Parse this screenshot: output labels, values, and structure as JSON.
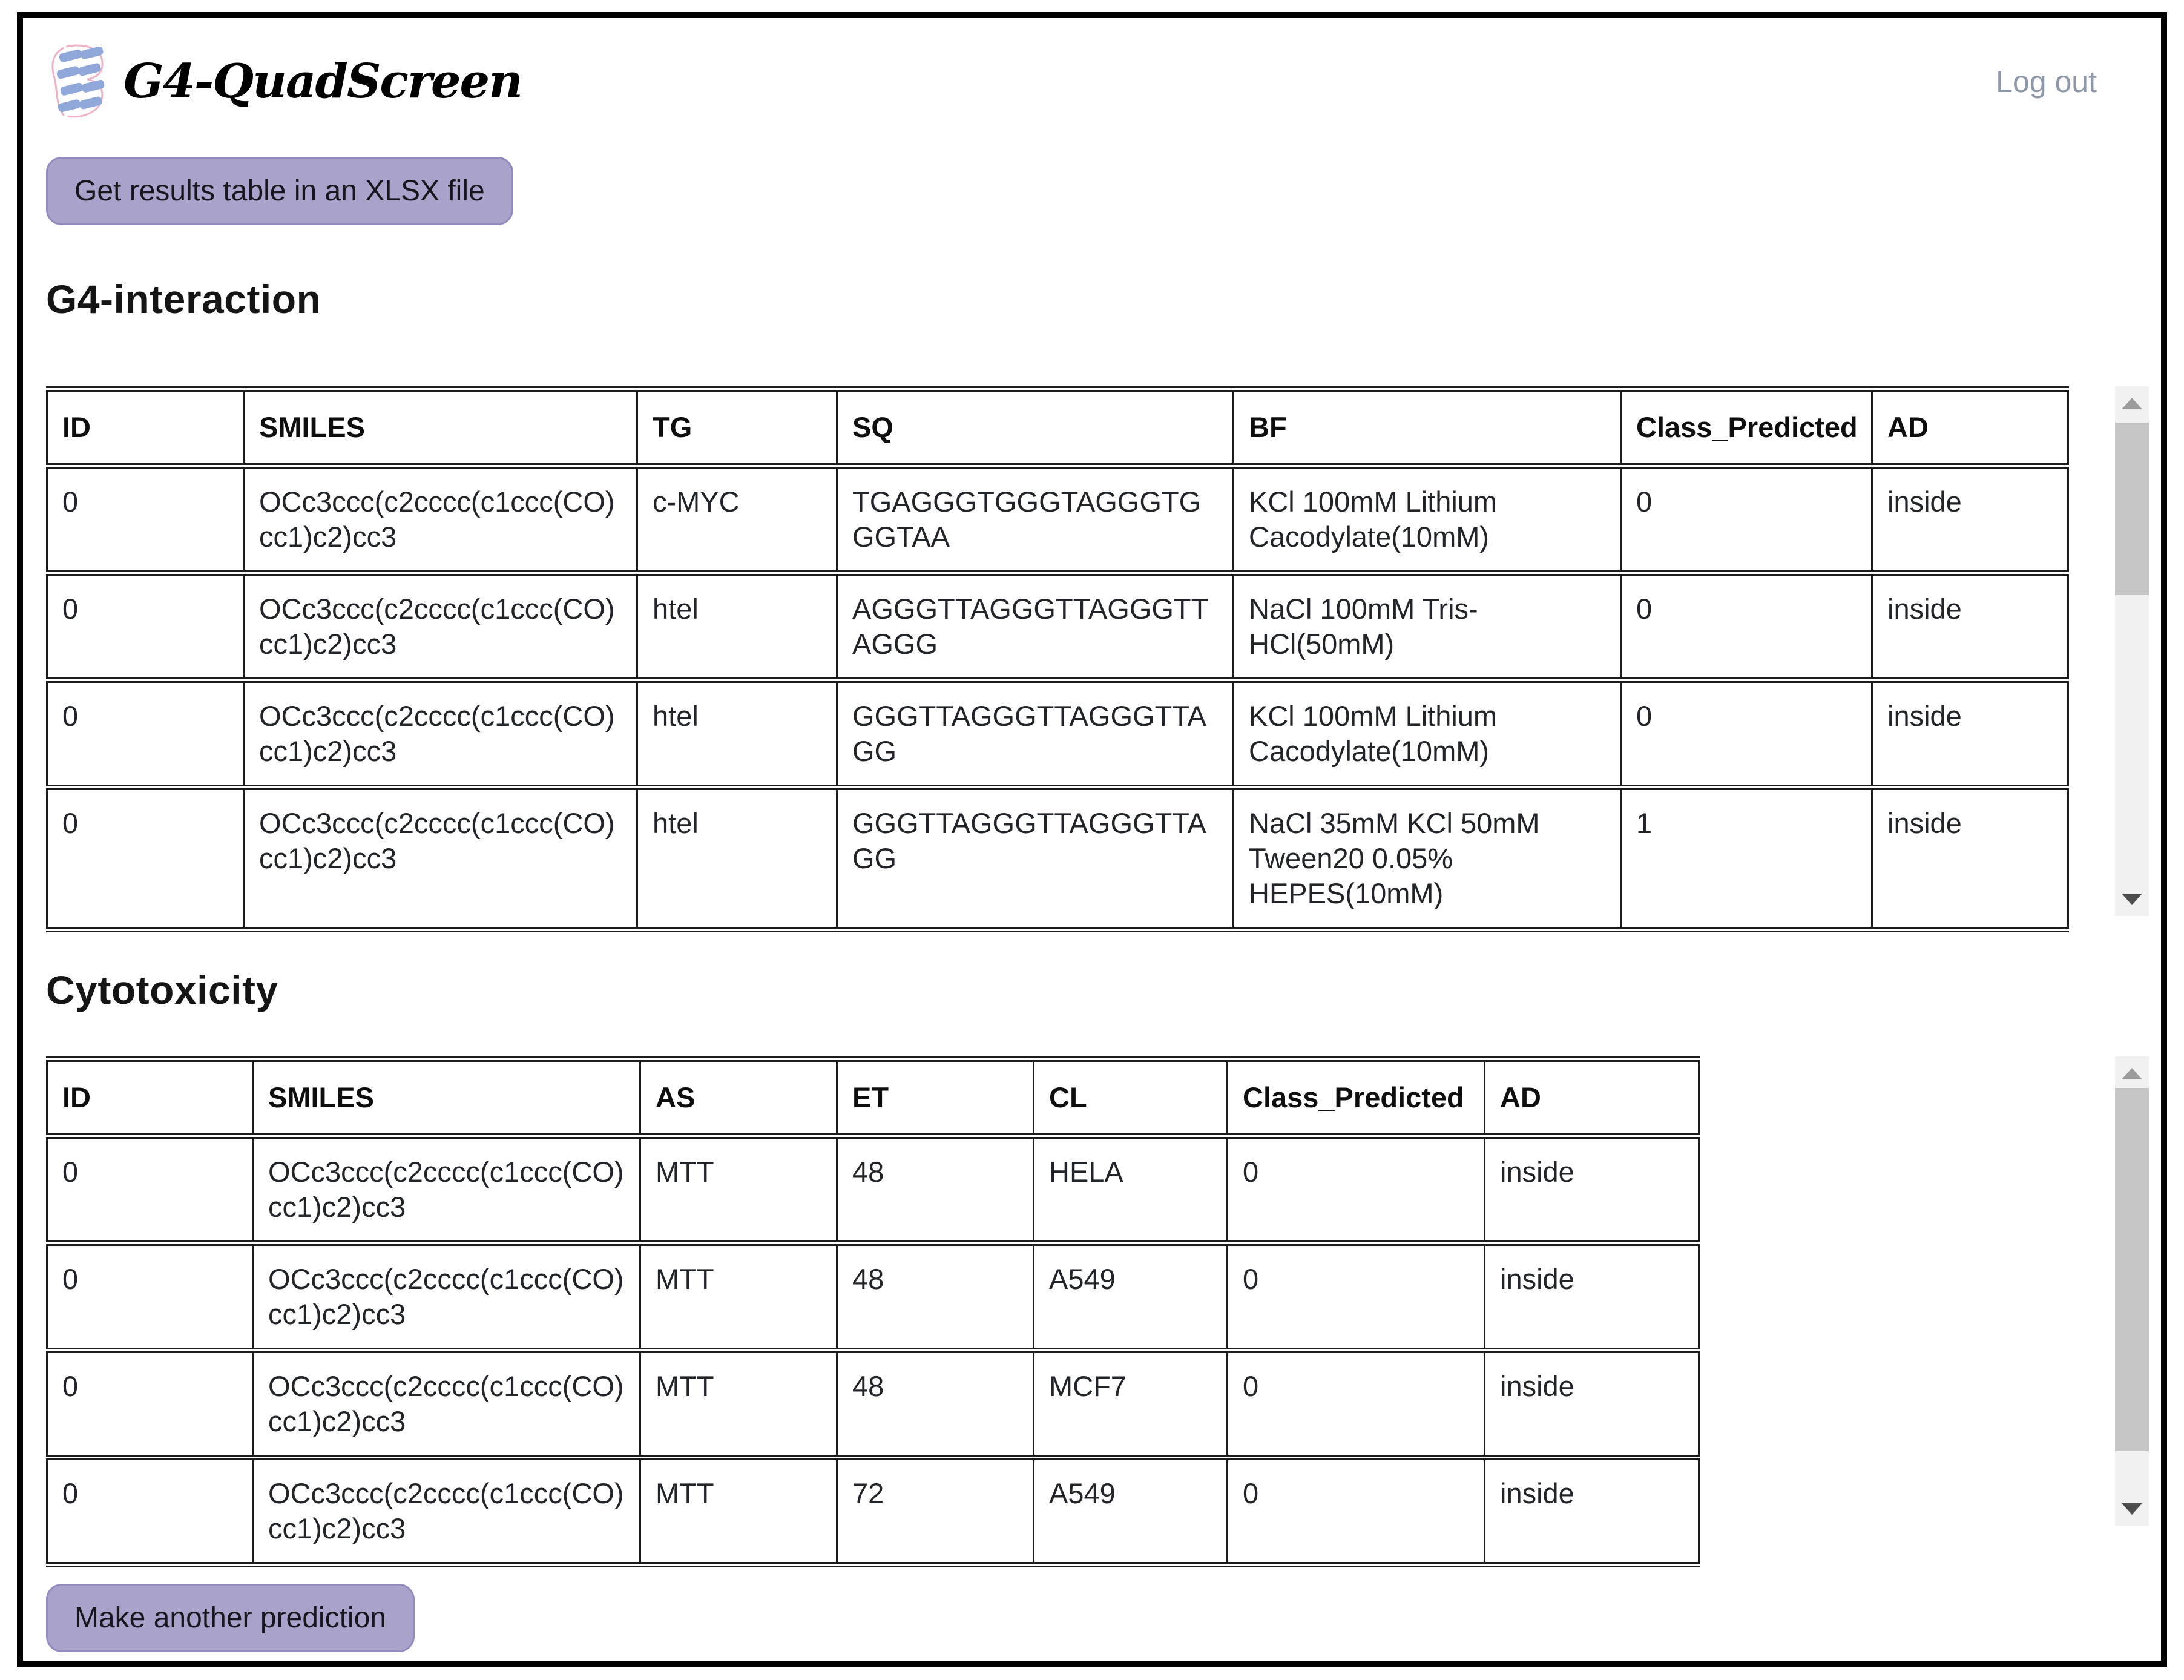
{
  "header": {
    "logo_text": "G4-QuadScreen",
    "logout_label": "Log out"
  },
  "toolbar": {
    "xlsx_button_label": "Get results table in an XLSX file"
  },
  "g4_section": {
    "title": "G4-interaction",
    "columns": [
      "ID",
      "SMILES",
      "TG",
      "SQ",
      "BF",
      "Class_Predicted",
      "AD"
    ],
    "rows": [
      [
        "0",
        "OCc3ccc(c2cccc(c1ccc(CO)cc1)c2)cc3",
        "c-MYC",
        "TGAGGGTGGGTAGGGTGGGTAA",
        "KCl 100mM Lithium Cacodylate(10mM)",
        "0",
        "inside"
      ],
      [
        "0",
        "OCc3ccc(c2cccc(c1ccc(CO)cc1)c2)cc3",
        "htel",
        "AGGGTTAGGGTTAGGGTTAGGG",
        "NaCl 100mM Tris-HCl(50mM)",
        "0",
        "inside"
      ],
      [
        "0",
        "OCc3ccc(c2cccc(c1ccc(CO)cc1)c2)cc3",
        "htel",
        "GGGTTAGGGTTAGGGTTAGG",
        "KCl 100mM Lithium Cacodylate(10mM)",
        "0",
        "inside"
      ],
      [
        "0",
        "OCc3ccc(c2cccc(c1ccc(CO)cc1)c2)cc3",
        "htel",
        "GGGTTAGGGTTAGGGTTAGG",
        "NaCl 35mM KCl 50mM Tween20 0.05% HEPES(10mM)",
        "1",
        "inside"
      ]
    ]
  },
  "cytotoxicity_section": {
    "title": "Cytotoxicity",
    "columns": [
      "ID",
      "SMILES",
      "AS",
      "ET",
      "CL",
      "Class_Predicted",
      "AD"
    ],
    "rows": [
      [
        "0",
        "OCc3ccc(c2cccc(c1ccc(CO)cc1)c2)cc3",
        "MTT",
        "48",
        "HELA",
        "0",
        "inside"
      ],
      [
        "0",
        "OCc3ccc(c2cccc(c1ccc(CO)cc1)c2)cc3",
        "MTT",
        "48",
        "A549",
        "0",
        "inside"
      ],
      [
        "0",
        "OCc3ccc(c2cccc(c1ccc(CO)cc1)c2)cc3",
        "MTT",
        "48",
        "MCF7",
        "0",
        "inside"
      ],
      [
        "0",
        "OCc3ccc(c2cccc(c1ccc(CO)cc1)c2)cc3",
        "MTT",
        "72",
        "A549",
        "0",
        "inside"
      ]
    ]
  },
  "footer": {
    "predict_button_label": "Make another prediction"
  },
  "colors": {
    "accent": "#a9a2ca",
    "accent_border": "#938bbd",
    "logout_link": "#8d97a8",
    "table_border": "#1c1c1c",
    "scrollbar_track": "#f1f1f1",
    "scrollbar_thumb": "#c6c6c6"
  }
}
